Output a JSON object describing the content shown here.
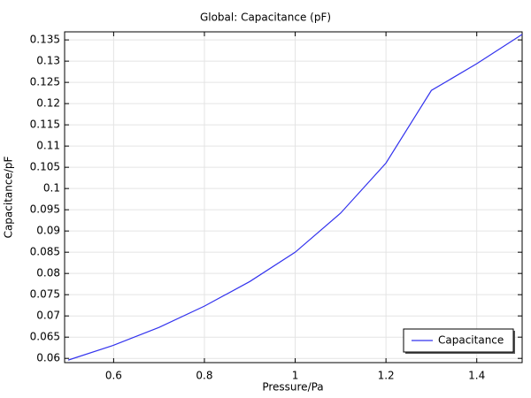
{
  "chart_data": {
    "type": "line",
    "title": "Global: Capacitance (pF)",
    "x_label": "Pressure/Pa",
    "y_label": "Capacitance/pF",
    "x": [
      0.5,
      0.6,
      0.7,
      0.8,
      0.9,
      1.0,
      1.1,
      1.2,
      1.3,
      1.4,
      1.5
    ],
    "series": [
      {
        "name": "Capacitance",
        "color": "#3333ee",
        "values": [
          0.0596,
          0.0631,
          0.0673,
          0.0723,
          0.0781,
          0.085,
          0.0942,
          0.106,
          0.1231,
          0.1294,
          0.1363
        ]
      }
    ],
    "xlim": [
      0.492,
      1.5
    ],
    "ylim": [
      0.059,
      0.1369
    ],
    "xticks": [
      0.6,
      0.8,
      1,
      1.2,
      1.4
    ],
    "yticks": [
      0.06,
      0.065,
      0.07,
      0.075,
      0.08,
      0.085,
      0.09,
      0.095,
      0.1,
      0.105,
      0.11,
      0.115,
      0.12,
      0.125,
      0.13,
      0.135
    ],
    "grid": true,
    "legend": "lower right"
  }
}
